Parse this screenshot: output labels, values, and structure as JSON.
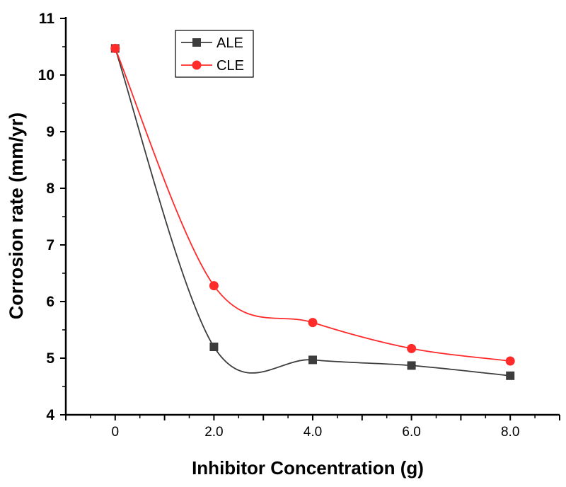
{
  "chart_data": {
    "type": "line",
    "x": [
      0,
      2,
      4,
      6,
      8
    ],
    "x_tick_labels": [
      "0",
      "2.0",
      "4.0",
      "6.0",
      "8.0"
    ],
    "xlim": [
      -1,
      9
    ],
    "ylim": [
      4,
      11
    ],
    "y_ticks": [
      4,
      5,
      6,
      7,
      8,
      9,
      10,
      11
    ],
    "xlabel": "Inhibitor Concentration (g)",
    "ylabel": "Corrosion rate (mm/yr)",
    "grid": false,
    "legend_position": "top-center",
    "series": [
      {
        "name": "ALE",
        "values": [
          10.47,
          5.2,
          4.97,
          4.87,
          4.69
        ],
        "color": "#3d3d3d",
        "marker": "square"
      },
      {
        "name": "CLE",
        "values": [
          10.47,
          6.28,
          5.63,
          5.17,
          4.95
        ],
        "color": "#ff2a2a",
        "marker": "circle"
      }
    ]
  }
}
